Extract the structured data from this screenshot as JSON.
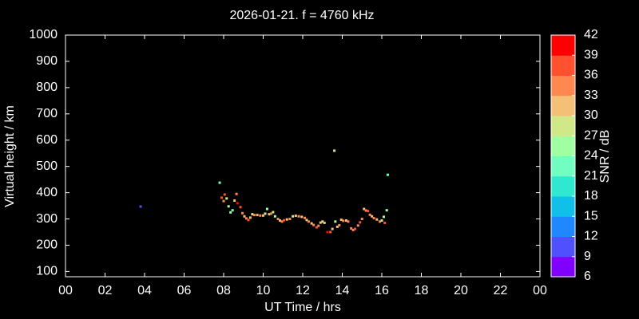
{
  "chart_data": {
    "type": "scatter",
    "title": "2026-01-21. f = 4760 kHz",
    "xlabel": "UT Time / hrs",
    "ylabel": "Virtual height / km",
    "colorbar_label": "SNR / dB",
    "xlim": [
      0,
      24
    ],
    "xticks": [
      {
        "value": 0,
        "label": "00"
      },
      {
        "value": 2,
        "label": "02"
      },
      {
        "value": 4,
        "label": "04"
      },
      {
        "value": 6,
        "label": "06"
      },
      {
        "value": 8,
        "label": "08"
      },
      10,
      12,
      14,
      16,
      18,
      20,
      22,
      {
        "value": 24,
        "label": "00"
      }
    ],
    "ylim": [
      80,
      1000
    ],
    "yticks": [
      100,
      200,
      300,
      400,
      500,
      600,
      700,
      800,
      900,
      1000
    ],
    "clim": [
      6,
      42
    ],
    "cticks": [
      6,
      9,
      12,
      15,
      18,
      21,
      24,
      27,
      30,
      33,
      36,
      39,
      42
    ],
    "colormap": [
      "#8000ff",
      "#5050ff",
      "#2088ff",
      "#10c0e8",
      "#30e8d0",
      "#70ffc0",
      "#a0ffa0",
      "#d0e888",
      "#f4c078",
      "#ff8850",
      "#ff5030",
      "#ff0000"
    ],
    "x": [
      3.8,
      7.8,
      7.9,
      8.0,
      8.05,
      8.15,
      8.25,
      8.35,
      8.45,
      8.55,
      8.65,
      8.7,
      8.85,
      8.95,
      9.05,
      9.15,
      9.25,
      9.35,
      9.45,
      9.55,
      9.7,
      9.85,
      10.0,
      10.1,
      10.2,
      10.3,
      10.4,
      10.5,
      10.6,
      10.75,
      10.85,
      10.95,
      11.05,
      11.2,
      11.35,
      11.5,
      11.65,
      11.8,
      11.95,
      12.1,
      12.2,
      12.3,
      12.45,
      12.55,
      12.7,
      12.8,
      12.9,
      13.0,
      13.1,
      13.25,
      13.4,
      13.5,
      13.6,
      13.65,
      13.75,
      13.85,
      13.95,
      14.05,
      14.2,
      14.3,
      14.45,
      14.55,
      14.65,
      14.8,
      14.9,
      15.0,
      15.1,
      15.2,
      15.3,
      15.4,
      15.5,
      15.6,
      15.75,
      15.9,
      16.0,
      16.1,
      16.15,
      16.25,
      16.3
    ],
    "values": [
      347,
      438,
      381,
      368,
      393,
      378,
      348,
      325,
      333,
      370,
      395,
      360,
      345,
      322,
      310,
      302,
      296,
      305,
      318,
      315,
      315,
      313,
      313,
      320,
      338,
      318,
      320,
      326,
      310,
      300,
      294,
      290,
      295,
      298,
      300,
      310,
      312,
      310,
      308,
      304,
      296,
      290,
      283,
      277,
      268,
      274,
      286,
      290,
      285,
      250,
      250,
      262,
      560,
      290,
      270,
      276,
      297,
      293,
      294,
      290,
      264,
      258,
      262,
      275,
      287,
      300,
      338,
      332,
      330,
      316,
      310,
      303,
      298,
      290,
      294,
      308,
      285,
      333,
      468
    ],
    "snr": [
      9,
      22,
      36,
      33,
      36,
      27,
      24,
      24,
      22,
      30,
      33,
      39,
      36,
      33,
      30,
      33,
      36,
      30,
      27,
      33,
      30,
      33,
      30,
      27,
      24,
      30,
      33,
      27,
      24,
      33,
      30,
      33,
      36,
      30,
      33,
      27,
      30,
      33,
      30,
      33,
      30,
      33,
      30,
      33,
      36,
      33,
      30,
      27,
      30,
      39,
      36,
      30,
      27,
      24,
      30,
      33,
      30,
      33,
      30,
      33,
      33,
      33,
      36,
      33,
      36,
      33,
      30,
      33,
      36,
      33,
      30,
      33,
      30,
      33,
      27,
      24,
      36,
      24,
      22
    ]
  }
}
